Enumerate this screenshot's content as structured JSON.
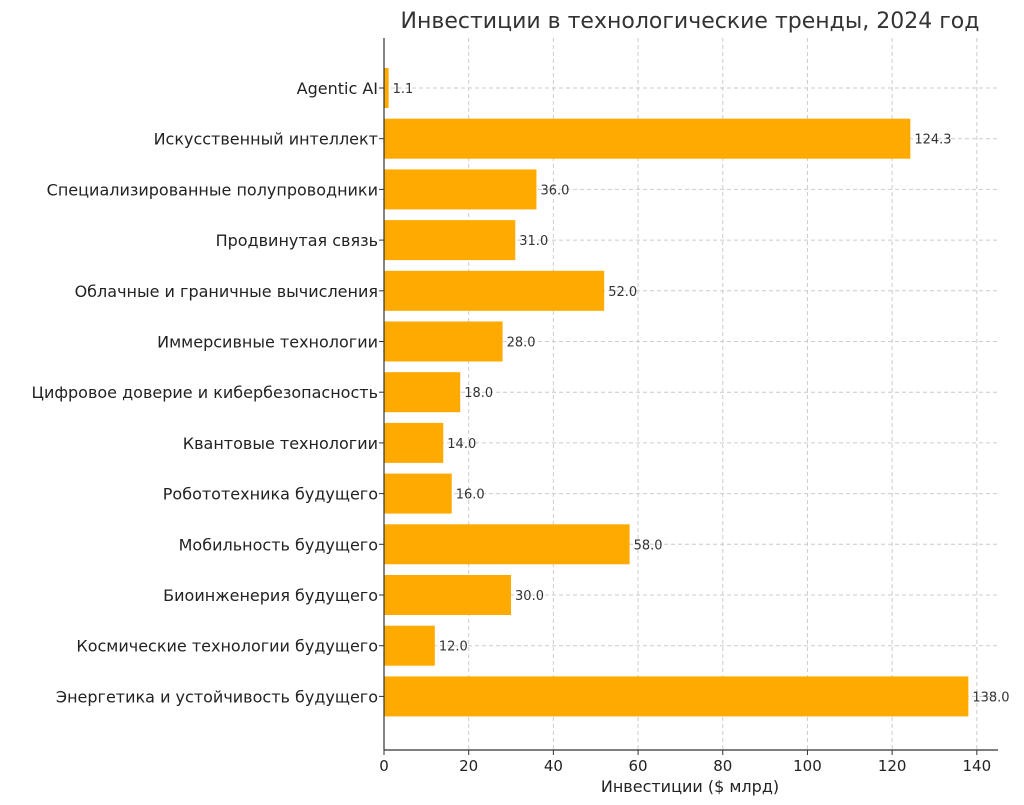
{
  "chart_data": {
    "type": "bar",
    "orientation": "horizontal",
    "title": "Инвестиции в технологические тренды, 2024 год",
    "xlabel": "Инвестиции ($ млрд)",
    "ylabel": "",
    "categories": [
      "Agentic AI",
      "Искусственный интеллект",
      "Специализированные полупроводники",
      "Продвинутая связь",
      "Облачные и граничные вычисления",
      "Иммерсивные технологии",
      "Цифровое доверие и кибербезопасность",
      "Квантовые технологии",
      "Робототехника будущего",
      "Мобильность будущего",
      "Биоинженерия будущего",
      "Космические технологии будущего",
      "Энергетика и устойчивость будущего"
    ],
    "values": [
      1.1,
      124.3,
      36.0,
      31.0,
      52.0,
      28.0,
      18.0,
      14.0,
      16.0,
      58.0,
      30.0,
      12.0,
      138.0
    ],
    "value_labels": [
      "1.1",
      "124.3",
      "36.0",
      "31.0",
      "52.0",
      "28.0",
      "18.0",
      "14.0",
      "16.0",
      "58.0",
      "30.0",
      "12.0",
      "138.0"
    ],
    "xlim": [
      0,
      145
    ],
    "xticks": [
      0,
      20,
      40,
      60,
      80,
      100,
      120,
      140
    ],
    "grid": true,
    "bar_color": "#FFAA00"
  }
}
